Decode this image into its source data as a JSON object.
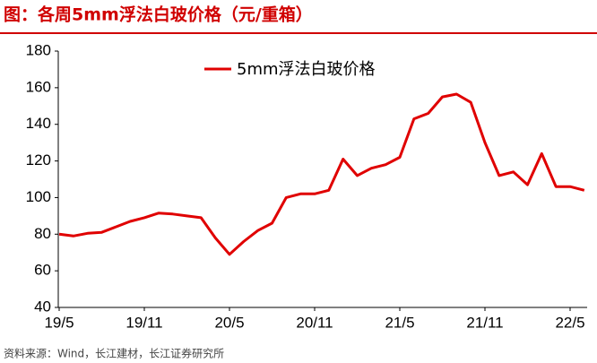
{
  "chart_data": {
    "type": "line",
    "title": "图：各周5mm浮法白玻价格（元/重箱）",
    "source": "资料来源：Wind，长江建材，长江证券研究所",
    "categories": [
      "19/5",
      null,
      null,
      null,
      null,
      null,
      "19/11",
      null,
      null,
      null,
      null,
      null,
      "20/5",
      null,
      null,
      null,
      null,
      null,
      "20/11",
      null,
      null,
      null,
      null,
      null,
      "21/5",
      null,
      null,
      null,
      null,
      null,
      "21/11",
      null,
      null,
      null,
      null,
      null,
      "22/5",
      null
    ],
    "series": [
      {
        "name": "5mm浮法白玻价格",
        "color": "#e00000",
        "values": [
          80,
          79,
          80.5,
          81,
          84,
          87,
          89,
          91.5,
          91,
          90,
          89,
          78,
          69,
          76,
          82,
          86,
          100,
          102,
          102,
          104,
          121,
          112,
          116,
          118,
          122,
          143,
          146,
          155,
          156.5,
          152,
          130,
          112,
          114,
          107,
          124,
          106,
          106,
          104
        ]
      }
    ],
    "ylim": [
      40,
      180
    ],
    "yticks": [
      40,
      60,
      80,
      100,
      120,
      140,
      160,
      180
    ],
    "grid": false,
    "legend": "top"
  }
}
